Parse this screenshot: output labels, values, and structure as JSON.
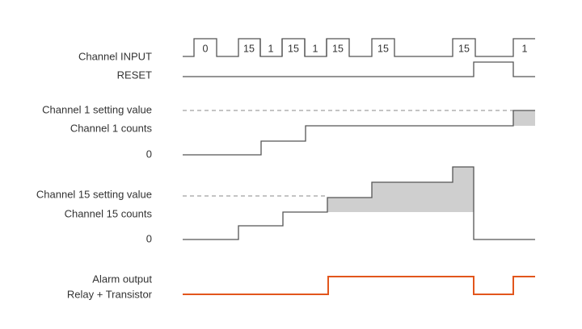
{
  "labels": [
    "Channel INPUT",
    "RESET",
    "Channel 1 setting value",
    "Channel 1 counts",
    "0",
    "Channel 15 setting value",
    "Channel 15 counts",
    "0",
    "Alarm output",
    "Relay + Transistor"
  ],
  "pulse_labels": [
    "0",
    "15",
    "1",
    "15",
    "1",
    "15",
    "15",
    "15",
    "1"
  ]
}
